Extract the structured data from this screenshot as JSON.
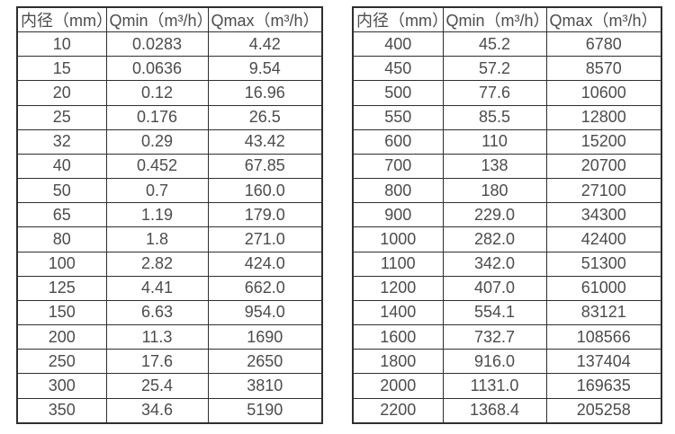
{
  "page": {
    "background": "#ffffff",
    "table_border_color": "#2f2f2f",
    "text_color": "#4c4c4c"
  },
  "left_table": {
    "headers": [
      "内径（mm）",
      "Qmin（m³/h）",
      "Qmax（m³/h）"
    ],
    "rows": [
      [
        "10",
        "0.0283",
        "4.42"
      ],
      [
        "15",
        "0.0636",
        "9.54"
      ],
      [
        "20",
        "0.12",
        "16.96"
      ],
      [
        "25",
        "0.176",
        "26.5"
      ],
      [
        "32",
        "0.29",
        "43.42"
      ],
      [
        "40",
        "0.452",
        "67.85"
      ],
      [
        "50",
        "0.7",
        "160.0"
      ],
      [
        "65",
        "1.19",
        "179.0"
      ],
      [
        "80",
        "1.8",
        "271.0"
      ],
      [
        "100",
        "2.82",
        "424.0"
      ],
      [
        "125",
        "4.41",
        "662.0"
      ],
      [
        "150",
        "6.63",
        "954.0"
      ],
      [
        "200",
        "11.3",
        "1690"
      ],
      [
        "250",
        "17.6",
        "2650"
      ],
      [
        "300",
        "25.4",
        "3810"
      ],
      [
        "350",
        "34.6",
        "5190"
      ]
    ]
  },
  "right_table": {
    "headers": [
      "内径（mm）",
      "Qmin（m³/h）",
      "Qmax（m³/h）"
    ],
    "rows": [
      [
        "400",
        "45.2",
        "6780"
      ],
      [
        "450",
        "57.2",
        "8570"
      ],
      [
        "500",
        "77.6",
        "10600"
      ],
      [
        "550",
        "85.5",
        "12800"
      ],
      [
        "600",
        "110",
        "15200"
      ],
      [
        "700",
        "138",
        "20700"
      ],
      [
        "800",
        "180",
        "27100"
      ],
      [
        "900",
        "229.0",
        "34300"
      ],
      [
        "1000",
        "282.0",
        "42400"
      ],
      [
        "1100",
        "342.0",
        "51300"
      ],
      [
        "1200",
        "407.0",
        "61000"
      ],
      [
        "1400",
        "554.1",
        "83121"
      ],
      [
        "1600",
        "732.7",
        "108566"
      ],
      [
        "1800",
        "916.0",
        "137404"
      ],
      [
        "2000",
        "1131.0",
        "169635"
      ],
      [
        "2200",
        "1368.4",
        "205258"
      ]
    ]
  }
}
